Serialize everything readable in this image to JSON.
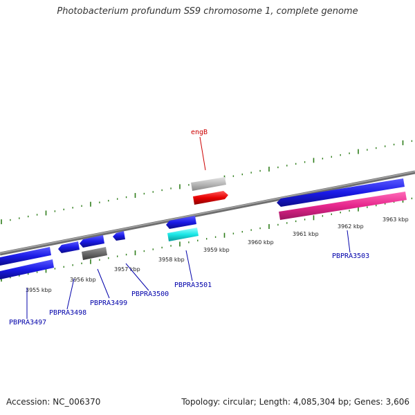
{
  "title": "Photobacterium profundum SS9 chromosome 1, complete genome",
  "footer": {
    "accession_label": "Accession:",
    "accession": "NC_006370",
    "topology_label": "Topology:",
    "topology": "circular",
    "length_label": "Length:",
    "length": "4,085,304 bp",
    "genes_label": "Genes:",
    "genes": "3,606"
  },
  "scale_labels": [
    "3955 kbp",
    "3956 kbp",
    "3957 kbp",
    "3958 kbp",
    "3959 kbp",
    "3960 kbp",
    "3961 kbp",
    "3962 kbp",
    "3963 kbp"
  ],
  "gene_labels": {
    "engB": "engB",
    "PBPRA3497": "PBPRA3497",
    "PBPRA3498": "PBPRA3498",
    "PBPRA3499": "PBPRA3499",
    "PBPRA3500": "PBPRA3500",
    "PBPRA3501": "PBPRA3501",
    "PBPRA3503": "PBPRA3503"
  },
  "colors": {
    "backbone": "#888888",
    "tick": "#2e7d1a",
    "gene_blue": "#1a1ae6",
    "gene_magenta": "#e6268c",
    "gene_red": "#e60000",
    "gene_cyan": "#1ae6e6",
    "gene_gray_light": "#b8b8b8",
    "gene_gray_dark": "#6a6a6a",
    "label_blue": "#0000aa",
    "label_red": "#cc0000"
  }
}
